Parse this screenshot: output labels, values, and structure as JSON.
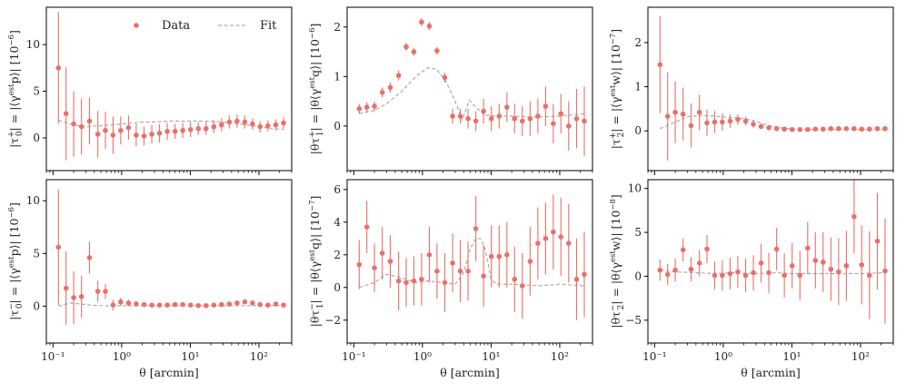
{
  "colors": {
    "data": "#e8706a",
    "fit": "#a9a9b3",
    "axis": "#000000"
  },
  "legend": {
    "data_label": "Data",
    "fit_label": "Fit",
    "placement": "top-right"
  },
  "shared_xlabel": "θ [arcmin]",
  "chart_data": [
    {
      "type": "scatter",
      "panel": "tau0-plus",
      "row": 0,
      "col": 0,
      "ylabel": "|τ0+| = |⟨γest p⟩| [10⁻⁶]",
      "ylabel_parts": {
        "lhs": "|τ",
        "sub": "0",
        "sup": "+",
        "mid": "| = |⟨γ",
        "est": "est",
        "tail": "p⟩| [10",
        "exp": "−6",
        "close": "]"
      },
      "xlim": [
        0.08,
        300
      ],
      "ylim": [
        -3.5,
        14
      ],
      "yticks": [
        0,
        5,
        10
      ],
      "xtick_labels": [],
      "x": [
        0.12,
        0.155,
        0.2,
        0.26,
        0.34,
        0.45,
        0.58,
        0.75,
        0.97,
        1.26,
        1.63,
        2.12,
        2.75,
        3.56,
        4.62,
        6.0,
        7.77,
        10.1,
        13.1,
        17.0,
        22.0,
        28.5,
        37.0,
        48.0,
        62.2,
        80.6,
        104,
        135,
        176,
        228
      ],
      "y": [
        7.5,
        2.6,
        1.5,
        1.2,
        1.8,
        0.4,
        0.8,
        0.3,
        0.8,
        1.1,
        0.3,
        0.2,
        0.4,
        0.5,
        0.7,
        0.7,
        0.8,
        0.9,
        1.0,
        1.0,
        1.2,
        1.4,
        1.7,
        1.8,
        1.7,
        1.5,
        1.2,
        1.3,
        1.4,
        1.6
      ],
      "err": [
        6.0,
        5.0,
        3.5,
        3.0,
        2.5,
        2.5,
        2.0,
        2.0,
        1.5,
        1.3,
        1.2,
        1.0,
        1.0,
        1.0,
        0.9,
        0.8,
        0.8,
        0.8,
        0.7,
        0.7,
        0.7,
        0.7,
        0.7,
        0.7,
        0.7,
        0.6,
        0.6,
        0.6,
        0.6,
        0.6
      ],
      "fit_x": [
        0.12,
        0.2,
        0.3,
        0.5,
        1,
        2,
        3,
        5,
        10,
        20,
        40,
        80,
        150,
        230
      ],
      "fit_y": [
        1.9,
        1.4,
        1.2,
        1.3,
        1.5,
        1.7,
        1.7,
        1.8,
        1.8,
        1.8,
        1.6,
        1.3,
        1.0,
        0.9
      ]
    },
    {
      "type": "scatter",
      "panel": "tau1-plus",
      "row": 0,
      "col": 1,
      "ylabel": "|θτ1+| = |θ⟨γest q⟩| [10⁻⁶]",
      "ylabel_parts": {
        "lhs": "|θτ",
        "sub": "1",
        "sup": "+",
        "mid": "| = |θ⟨γ",
        "est": "est",
        "tail": "q⟩| [10",
        "exp": "−6",
        "close": "]"
      },
      "xlim": [
        0.08,
        300
      ],
      "ylim": [
        -0.9,
        2.4
      ],
      "yticks": [
        0,
        1,
        2
      ],
      "xtick_labels": [],
      "x": [
        0.12,
        0.155,
        0.2,
        0.26,
        0.34,
        0.45,
        0.58,
        0.75,
        0.97,
        1.26,
        1.63,
        2.12,
        2.75,
        3.56,
        4.62,
        6.0,
        7.77,
        10.1,
        13.1,
        17.0,
        22.0,
        28.5,
        37.0,
        48.0,
        62.2,
        80.6,
        104,
        135,
        176,
        228
      ],
      "y": [
        0.35,
        0.38,
        0.4,
        0.68,
        0.78,
        1.02,
        1.6,
        1.5,
        2.1,
        2.02,
        1.52,
        0.98,
        0.2,
        0.2,
        0.15,
        0.1,
        0.3,
        0.15,
        0.2,
        0.38,
        0.15,
        0.1,
        0.15,
        0.2,
        0.4,
        0.05,
        0.25,
        0.0,
        0.15,
        0.1
      ],
      "err": [
        0.1,
        0.1,
        0.1,
        0.1,
        0.1,
        0.1,
        0.08,
        0.08,
        0.08,
        0.08,
        0.08,
        0.1,
        0.15,
        0.15,
        0.2,
        0.2,
        0.25,
        0.25,
        0.25,
        0.3,
        0.3,
        0.3,
        0.35,
        0.35,
        0.4,
        0.4,
        0.4,
        0.5,
        0.6,
        0.7
      ],
      "fit_x": [
        0.12,
        0.2,
        0.3,
        0.5,
        0.8,
        1.2,
        1.6,
        2.2,
        3.0,
        3.8,
        4.8,
        6,
        8,
        12,
        20,
        40,
        100,
        230
      ],
      "fit_y": [
        0.25,
        0.32,
        0.45,
        0.7,
        1.0,
        1.18,
        1.15,
        0.9,
        0.5,
        0.12,
        0.52,
        0.38,
        0.22,
        0.2,
        0.2,
        0.18,
        0.2,
        0.25
      ]
    },
    {
      "type": "scatter",
      "panel": "tau2-plus",
      "row": 0,
      "col": 2,
      "ylabel": "|τ2+| = |⟨γest w⟩| [10⁻⁷]",
      "ylabel_parts": {
        "lhs": "|τ",
        "sub": "2",
        "sup": "+",
        "mid": "| = |⟨γ",
        "est": "est",
        "tail": "w⟩| [10",
        "exp": "−7",
        "close": "]"
      },
      "xlim": [
        0.08,
        300
      ],
      "ylim": [
        -0.9,
        2.8
      ],
      "yticks": [
        0,
        1,
        2
      ],
      "xtick_labels": [],
      "x": [
        0.12,
        0.155,
        0.2,
        0.26,
        0.34,
        0.45,
        0.58,
        0.75,
        0.97,
        1.26,
        1.63,
        2.12,
        2.75,
        3.56,
        4.62,
        6.0,
        7.77,
        10.1,
        13.1,
        17.0,
        22.0,
        28.5,
        37.0,
        48.0,
        62.2,
        80.6,
        104,
        135,
        176,
        228
      ],
      "y": [
        1.5,
        0.33,
        0.42,
        0.38,
        0.12,
        0.42,
        0.18,
        0.2,
        0.2,
        0.22,
        0.26,
        0.22,
        0.15,
        0.1,
        0.07,
        0.05,
        0.04,
        0.03,
        0.03,
        0.03,
        0.04,
        0.04,
        0.05,
        0.05,
        0.05,
        0.05,
        0.04,
        0.04,
        0.05,
        0.05
      ],
      "err": [
        1.1,
        1.0,
        0.7,
        0.6,
        0.5,
        0.4,
        0.3,
        0.25,
        0.2,
        0.15,
        0.12,
        0.1,
        0.08,
        0.06,
        0.05,
        0.05,
        0.04,
        0.04,
        0.03,
        0.03,
        0.03,
        0.03,
        0.03,
        0.03,
        0.03,
        0.03,
        0.03,
        0.03,
        0.03,
        0.03
      ],
      "fit_x": [
        0.12,
        0.2,
        0.3,
        0.5,
        0.8,
        1.2,
        2,
        3,
        4,
        6,
        10,
        20,
        50,
        100,
        230
      ],
      "fit_y": [
        0.05,
        0.2,
        0.32,
        0.35,
        0.33,
        0.3,
        0.28,
        0.22,
        0.15,
        0.08,
        0.04,
        0.03,
        0.03,
        0.03,
        0.03
      ]
    },
    {
      "type": "scatter",
      "panel": "tau0-minus",
      "row": 1,
      "col": 0,
      "ylabel": "|τ0−| = |⟨γest p⟩| [10⁻⁶]",
      "ylabel_parts": {
        "lhs": "|τ",
        "sub": "0",
        "sup": "−",
        "mid": "| = |⟨γ",
        "est": "est",
        "tail": "p⟩| [10",
        "exp": "−6",
        "close": "]"
      },
      "xlim": [
        0.08,
        300
      ],
      "ylim": [
        -3.5,
        12
      ],
      "yticks": [
        0,
        5,
        10
      ],
      "xtick_labels": [
        "10⁻¹",
        "10⁰",
        "10¹",
        "10²"
      ],
      "x": [
        0.12,
        0.155,
        0.2,
        0.26,
        0.34,
        0.45,
        0.58,
        0.75,
        0.97,
        1.26,
        1.63,
        2.12,
        2.75,
        3.56,
        4.62,
        6.0,
        7.77,
        10.1,
        13.1,
        17.0,
        22.0,
        28.5,
        37.0,
        48.0,
        62.2,
        80.6,
        104,
        135,
        176,
        228
      ],
      "y": [
        5.6,
        1.7,
        0.8,
        0.9,
        4.6,
        1.4,
        1.4,
        0.1,
        0.4,
        0.3,
        0.2,
        0.15,
        0.1,
        0.1,
        0.1,
        0.15,
        0.15,
        0.1,
        0.05,
        0.05,
        0.1,
        0.15,
        0.2,
        0.3,
        0.4,
        0.3,
        0.15,
        0.1,
        0.2,
        0.1
      ],
      "err": [
        5.5,
        3.5,
        2.5,
        2.0,
        1.5,
        1.0,
        0.7,
        0.5,
        0.4,
        0.3,
        0.25,
        0.2,
        0.15,
        0.12,
        0.1,
        0.1,
        0.1,
        0.1,
        0.1,
        0.1,
        0.1,
        0.1,
        0.1,
        0.1,
        0.1,
        0.1,
        0.1,
        0.1,
        0.1,
        0.1
      ],
      "fit_x": [
        0.12,
        0.18,
        0.25,
        0.35,
        0.5,
        1,
        2,
        5,
        10,
        30,
        100,
        230
      ],
      "fit_y": [
        0.0,
        0.3,
        0.2,
        0.1,
        0.05,
        0.05,
        0.05,
        0.05,
        0.05,
        0.05,
        0.05,
        0.05
      ]
    },
    {
      "type": "scatter",
      "panel": "tau1-minus",
      "row": 1,
      "col": 1,
      "ylabel": "|θτ1−| = |θ⟨γest q⟩| [10⁻⁷]",
      "ylabel_parts": {
        "lhs": "|θτ",
        "sub": "1",
        "sup": "−",
        "mid": "| = |θ⟨γ",
        "est": "est",
        "tail": "q⟩| [10",
        "exp": "−7",
        "close": "]"
      },
      "xlim": [
        0.08,
        300
      ],
      "ylim": [
        -3.4,
        6.6
      ],
      "yticks": [
        -2,
        0,
        2,
        4,
        6
      ],
      "xtick_labels": [
        "10⁻¹",
        "10⁰",
        "10¹",
        "10²"
      ],
      "x": [
        0.12,
        0.155,
        0.2,
        0.26,
        0.34,
        0.45,
        0.58,
        0.75,
        0.97,
        1.26,
        1.63,
        2.12,
        2.75,
        3.56,
        4.62,
        6.0,
        7.77,
        10.1,
        13.1,
        17.0,
        22.0,
        28.5,
        37.0,
        48.0,
        62.2,
        80.6,
        104,
        135,
        176,
        228
      ],
      "y": [
        1.4,
        3.7,
        1.2,
        2.1,
        1.6,
        0.4,
        0.3,
        0.4,
        0.5,
        2.0,
        1.0,
        0.3,
        1.5,
        1.0,
        1.0,
        3.6,
        0.7,
        1.9,
        1.9,
        2.0,
        0.5,
        0.1,
        1.6,
        2.7,
        3.0,
        3.4,
        3.1,
        2.7,
        0.5,
        0.8
      ],
      "err": [
        1.5,
        1.6,
        1.5,
        1.6,
        1.6,
        1.8,
        1.5,
        1.5,
        1.6,
        1.7,
        1.7,
        1.8,
        1.8,
        1.9,
        1.8,
        2.0,
        1.9,
        1.9,
        1.9,
        2.0,
        2.0,
        2.0,
        2.1,
        2.2,
        2.2,
        2.3,
        2.4,
        2.4,
        2.5,
        2.6
      ],
      "fit_x": [
        0.12,
        0.2,
        0.3,
        0.5,
        0.8,
        1.2,
        2,
        3,
        4,
        5,
        6,
        7,
        8,
        9,
        10,
        12,
        20,
        50,
        100,
        230
      ],
      "fit_y": [
        0.0,
        0.3,
        0.8,
        0.6,
        0.3,
        0.4,
        0.3,
        0.2,
        0.9,
        2.4,
        3.0,
        3.0,
        2.5,
        1.5,
        0.5,
        0.2,
        0.2,
        0.1,
        0.2,
        0.1
      ]
    },
    {
      "type": "scatter",
      "panel": "tau2-minus",
      "row": 1,
      "col": 2,
      "ylabel": "|θτ2−| = |θ⟨γest w⟩| [10⁻⁸]",
      "ylabel_parts": {
        "lhs": "|θτ",
        "sub": "2",
        "sup": "−",
        "mid": "| = |θ⟨γ",
        "est": "est",
        "tail": "w⟩| [10",
        "exp": "−8",
        "close": "]"
      },
      "xlim": [
        0.08,
        300
      ],
      "ylim": [
        -7.6,
        11
      ],
      "yticks": [
        -5,
        0,
        5,
        10
      ],
      "xtick_labels": [
        "10⁻¹",
        "10⁰",
        "10¹",
        "10²"
      ],
      "x": [
        0.12,
        0.155,
        0.2,
        0.26,
        0.34,
        0.45,
        0.58,
        0.75,
        0.97,
        1.26,
        1.63,
        2.12,
        2.75,
        3.56,
        4.62,
        6.0,
        7.77,
        10.1,
        13.1,
        17.0,
        22.0,
        28.5,
        37.0,
        48.0,
        62.2,
        80.6,
        104,
        135,
        176,
        228
      ],
      "y": [
        0.7,
        0.2,
        0.7,
        3.0,
        0.8,
        1.5,
        3.1,
        0.1,
        0.1,
        0.3,
        0.5,
        0.1,
        0.4,
        1.5,
        0.4,
        3.1,
        0.1,
        1.2,
        0.1,
        3.2,
        1.8,
        1.6,
        0.8,
        0.5,
        1.2,
        6.8,
        1.3,
        0.1,
        4.0,
        0.6
      ],
      "err": [
        1.2,
        1.2,
        1.3,
        1.3,
        1.4,
        1.5,
        1.6,
        1.6,
        1.7,
        1.8,
        1.8,
        1.9,
        2.0,
        2.2,
        2.3,
        2.4,
        2.5,
        2.6,
        2.8,
        3.0,
        3.2,
        3.4,
        3.6,
        3.8,
        4.0,
        4.2,
        4.5,
        5.0,
        5.5,
        6.0
      ],
      "fit_x": [
        0.12,
        0.2,
        0.4,
        0.8,
        1.5,
        3,
        6,
        10,
        30,
        100,
        230
      ],
      "fit_y": [
        0.7,
        0.5,
        0.4,
        0.3,
        0.4,
        0.3,
        0.4,
        0.3,
        0.3,
        0.3,
        0.4
      ]
    }
  ]
}
